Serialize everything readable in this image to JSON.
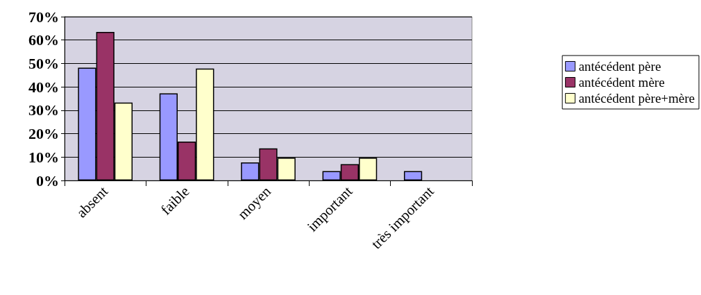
{
  "chart_data": {
    "type": "bar",
    "categories": [
      "absent",
      "faible",
      "moyen",
      "important",
      "très important"
    ],
    "series": [
      {
        "name": "antécédent père",
        "color": "#9999ff",
        "values": [
          48.2,
          37.2,
          7.7,
          4.0,
          4.0
        ]
      },
      {
        "name": "antécédent mère",
        "color": "#993366",
        "values": [
          63.5,
          16.6,
          13.7,
          7.0,
          null
        ]
      },
      {
        "name": "antécédent père+mère",
        "color": "#ffffcc",
        "values": [
          33.3,
          47.8,
          9.7,
          9.7,
          null
        ]
      }
    ],
    "ylim": [
      0,
      70
    ],
    "yticks": [
      {
        "value": 0,
        "label": "0%"
      },
      {
        "value": 10,
        "label": "10%"
      },
      {
        "value": 20,
        "label": "20%"
      },
      {
        "value": 30,
        "label": "30%"
      },
      {
        "value": 40,
        "label": "40%"
      },
      {
        "value": 50,
        "label": "50%"
      },
      {
        "value": 60,
        "label": "60%"
      },
      {
        "value": 70,
        "label": "70%"
      }
    ],
    "grid": "y",
    "legend": "right"
  }
}
